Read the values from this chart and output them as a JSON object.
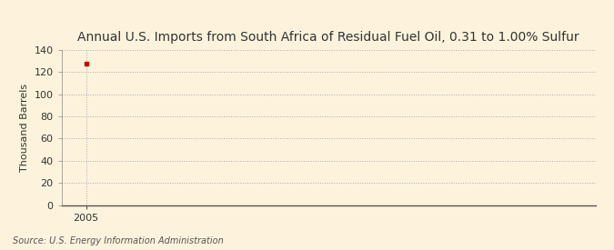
{
  "title": "Annual U.S. Imports from South Africa of Residual Fuel Oil, 0.31 to 1.00% Sulfur",
  "ylabel": "Thousand Barrels",
  "source": "Source: U.S. Energy Information Administration",
  "x_data": [
    2005
  ],
  "y_data": [
    128
  ],
  "xlim": [
    2004.3,
    2019.5
  ],
  "ylim": [
    0,
    140
  ],
  "yticks": [
    0,
    20,
    40,
    60,
    80,
    100,
    120,
    140
  ],
  "xticks": [
    2005
  ],
  "point_color": "#cc0000",
  "point_marker": "s",
  "point_size": 3.5,
  "background_color": "#fdf3dc",
  "plot_bg_color": "#fdf3dc",
  "grid_color": "#aaaaaa",
  "title_fontsize": 10,
  "label_fontsize": 8,
  "tick_fontsize": 8,
  "source_fontsize": 7
}
